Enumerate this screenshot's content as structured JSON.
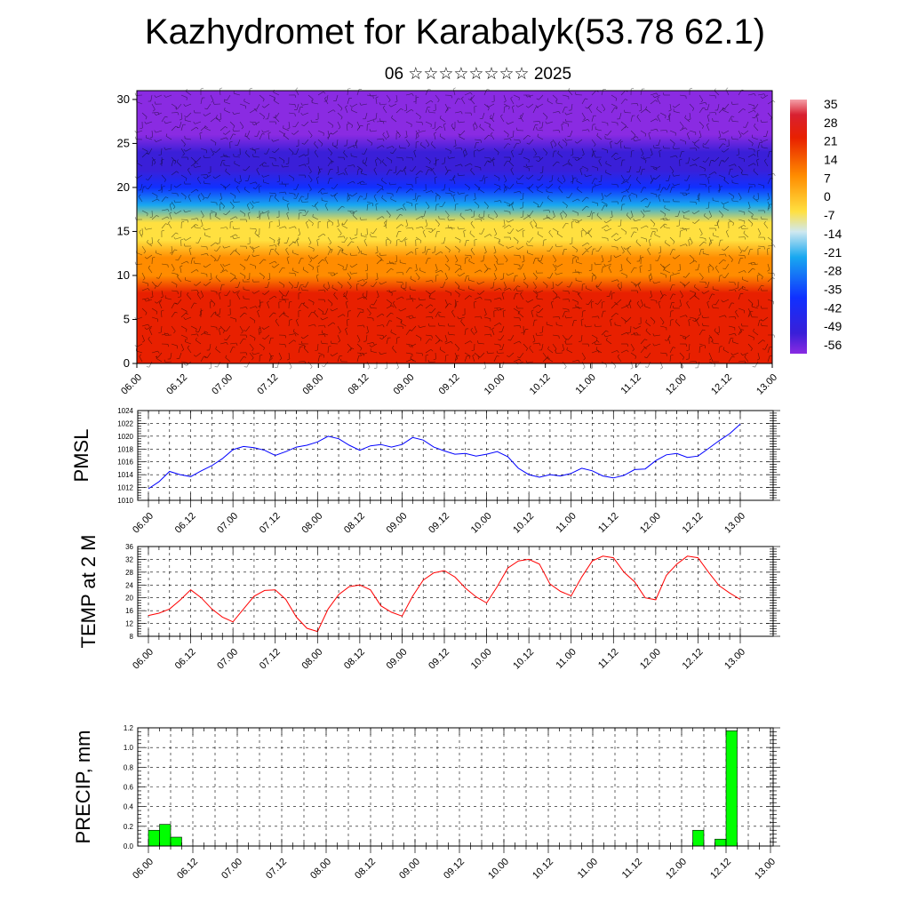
{
  "header": {
    "title": "Kazhydromet for Karabalyk(53.78 62.1)",
    "subtitle": "06 ☆☆☆☆☆☆☆☆ 2025"
  },
  "colors": {
    "pmsl_line": "#0000ff",
    "temp_line": "#ff0000",
    "precip_bar": "#00ff00",
    "grid": "#000000"
  },
  "chart_data": [
    {
      "type": "heatmap",
      "name": "vertical-section",
      "x_ticks": [
        "06.00",
        "06.12",
        "07.00",
        "07.12",
        "08.00",
        "08.12",
        "09.00",
        "09.12",
        "10.00",
        "10.12",
        "11.00",
        "11.12",
        "12.00",
        "12.12",
        "13.00"
      ],
      "y_ticks": [
        "0",
        "5",
        "10",
        "15",
        "20",
        "25",
        "30"
      ],
      "ylim": [
        0,
        31
      ],
      "colorbar_labels": [
        "35",
        "28",
        "21",
        "14",
        "7",
        "0",
        "-7",
        "-14",
        "-21",
        "-28",
        "-35",
        "-42",
        "-49",
        "-56"
      ],
      "colorbar_range": [
        -63,
        42
      ],
      "profile": {
        "levels": [
          0,
          2,
          5,
          8,
          10,
          12,
          14,
          16,
          18,
          20,
          22,
          24,
          26,
          28,
          31
        ],
        "values": [
          30,
          28,
          25,
          20,
          16,
          10,
          3,
          -6,
          -20,
          -35,
          -48,
          -56,
          -60,
          -59,
          -61
        ]
      },
      "overlay": "wind barbs"
    },
    {
      "type": "line",
      "name": "pmsl",
      "ylabel": "PMSL",
      "ylim": [
        1010,
        1024
      ],
      "y_ticks": [
        "1010",
        "1012",
        "1014",
        "1016",
        "1018",
        "1020",
        "1022",
        "1024"
      ],
      "x_ticks": [
        "06.00",
        "06.12",
        "07.00",
        "07.12",
        "08.00",
        "08.12",
        "09.00",
        "09.12",
        "10.00",
        "10.12",
        "11.00",
        "11.12",
        "12.00",
        "12.12",
        "13.00"
      ],
      "x": [
        0,
        3,
        6,
        9,
        12,
        15,
        18,
        21,
        24,
        27,
        30,
        33,
        36,
        39,
        42,
        45,
        48,
        51,
        54,
        57,
        60,
        63,
        66,
        69,
        72,
        75,
        78,
        81,
        84,
        87,
        90,
        93,
        96,
        99,
        102,
        105,
        108,
        111,
        114,
        117,
        120,
        123,
        126,
        129,
        132,
        135,
        138,
        141,
        144,
        147,
        150,
        153,
        156,
        159,
        162,
        165,
        168
      ],
      "values": [
        1011.8,
        1012.9,
        1014.5,
        1014.0,
        1013.7,
        1014.6,
        1015.4,
        1016.5,
        1017.9,
        1018.4,
        1018.2,
        1017.8,
        1017.0,
        1017.6,
        1018.3,
        1018.6,
        1019.1,
        1020.0,
        1019.6,
        1018.6,
        1017.8,
        1018.5,
        1018.7,
        1018.3,
        1018.7,
        1019.8,
        1019.4,
        1018.3,
        1017.7,
        1017.2,
        1017.3,
        1016.9,
        1017.2,
        1017.6,
        1016.8,
        1015.0,
        1014.0,
        1013.6,
        1014.0,
        1013.8,
        1014.2,
        1015.0,
        1014.6,
        1013.8,
        1013.5,
        1013.9,
        1014.8,
        1014.9,
        1016.2,
        1017.1,
        1017.3,
        1016.7,
        1016.9,
        1018.1,
        1019.3,
        1020.4,
        1021.9
      ]
    },
    {
      "type": "line",
      "name": "temp",
      "ylabel": "TEMP at 2 M",
      "ylim": [
        8,
        36
      ],
      "y_ticks": [
        "8",
        "12",
        "16",
        "20",
        "24",
        "28",
        "32",
        "36"
      ],
      "x_ticks": [
        "06.00",
        "06.12",
        "07.00",
        "07.12",
        "08.00",
        "08.12",
        "09.00",
        "09.12",
        "10.00",
        "10.12",
        "11.00",
        "11.12",
        "12.00",
        "12.12",
        "13.00"
      ],
      "x": [
        0,
        3,
        6,
        9,
        12,
        15,
        18,
        21,
        24,
        27,
        30,
        33,
        36,
        39,
        42,
        45,
        48,
        51,
        54,
        57,
        60,
        63,
        66,
        69,
        72,
        75,
        78,
        81,
        84,
        87,
        90,
        93,
        96,
        99,
        102,
        105,
        108,
        111,
        114,
        117,
        120,
        123,
        126,
        129,
        132,
        135,
        138,
        141,
        144,
        147,
        150,
        153,
        156,
        159,
        162,
        165,
        168
      ],
      "values": [
        14.5,
        15.2,
        16.5,
        19.3,
        22.5,
        20.0,
        16.5,
        14.0,
        12.5,
        16.5,
        20.5,
        22.3,
        22.5,
        19.5,
        14.0,
        10.5,
        9.5,
        16.5,
        21.0,
        23.5,
        24.0,
        22.5,
        17.5,
        15.5,
        14.3,
        20.5,
        25.5,
        27.8,
        28.5,
        26.5,
        23.0,
        20.3,
        18.4,
        23.5,
        29.3,
        31.5,
        32.0,
        30.5,
        24.3,
        22.0,
        20.6,
        26.5,
        31.5,
        33.0,
        32.5,
        28.0,
        25.0,
        20.0,
        19.4,
        27.0,
        30.5,
        33.0,
        32.5,
        28.0,
        23.8,
        21.5,
        19.5
      ]
    },
    {
      "type": "bar",
      "name": "precip",
      "ylabel": "PRECIP, mm",
      "ylim": [
        0,
        1.2
      ],
      "y_ticks": [
        "0.0",
        "0.2",
        "0.4",
        "0.6",
        "0.8",
        "1.0",
        "1.2"
      ],
      "x_ticks": [
        "06.00",
        "06.12",
        "07.00",
        "07.12",
        "08.00",
        "08.12",
        "09.00",
        "09.12",
        "10.00",
        "10.12",
        "11.00",
        "11.12",
        "12.00",
        "12.12",
        "13.00"
      ],
      "bars": [
        {
          "start": 0,
          "end": 3,
          "value": 0.16
        },
        {
          "start": 3,
          "end": 6,
          "value": 0.22
        },
        {
          "start": 6,
          "end": 9,
          "value": 0.09
        },
        {
          "start": 147,
          "end": 150,
          "value": 0.16
        },
        {
          "start": 153,
          "end": 156,
          "value": 0.07
        },
        {
          "start": 156,
          "end": 159,
          "value": 1.17
        }
      ]
    }
  ]
}
